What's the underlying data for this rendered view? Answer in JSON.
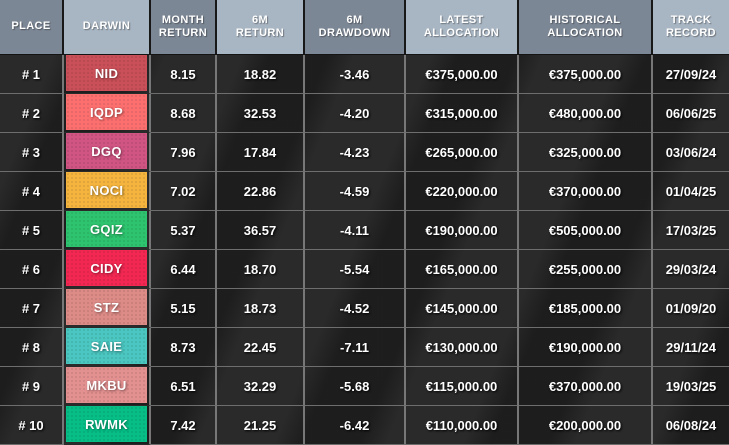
{
  "chart_data": {
    "type": "table",
    "title": "DARWIN leaderboard ranking table",
    "columns": [
      "PLACE",
      "DARWIN",
      "MONTH\nRETURN",
      "6M\nRETURN",
      "6M\nDRAWDOWN",
      "LATEST\nALLOCATION",
      "HISTORICAL\nALLOCATION",
      "TRACK\nRECORD"
    ],
    "rows": [
      {
        "place": "# 1",
        "darwin": "NID",
        "badge_color": "#c94f58",
        "month_return": "8.15",
        "six_m_return": "18.82",
        "six_m_drawdown": "-3.46",
        "latest_allocation": "€375,000.00",
        "historical_allocation": "€375,000.00",
        "track_record": "27/09/24"
      },
      {
        "place": "# 2",
        "darwin": "IQDP",
        "badge_color": "#fc6f6f",
        "month_return": "8.68",
        "six_m_return": "32.53",
        "six_m_drawdown": "-4.20",
        "latest_allocation": "€315,000.00",
        "historical_allocation": "€480,000.00",
        "track_record": "06/06/25"
      },
      {
        "place": "# 3",
        "darwin": "DGQ",
        "badge_color": "#d05583",
        "month_return": "7.96",
        "six_m_return": "17.84",
        "six_m_drawdown": "-4.23",
        "latest_allocation": "€265,000.00",
        "historical_allocation": "€325,000.00",
        "track_record": "03/06/24"
      },
      {
        "place": "# 4",
        "darwin": "NOCI",
        "badge_color": "#f4b43e",
        "month_return": "7.02",
        "six_m_return": "22.86",
        "six_m_drawdown": "-4.59",
        "latest_allocation": "€220,000.00",
        "historical_allocation": "€370,000.00",
        "track_record": "01/04/25"
      },
      {
        "place": "# 5",
        "darwin": "GQIZ",
        "badge_color": "#2ec46f",
        "month_return": "5.37",
        "six_m_return": "36.57",
        "six_m_drawdown": "-4.11",
        "latest_allocation": "€190,000.00",
        "historical_allocation": "€505,000.00",
        "track_record": "17/03/25"
      },
      {
        "place": "# 6",
        "darwin": "CIDY",
        "badge_color": "#f22852",
        "month_return": "6.44",
        "six_m_return": "18.70",
        "six_m_drawdown": "-5.54",
        "latest_allocation": "€165,000.00",
        "historical_allocation": "€255,000.00",
        "track_record": "29/03/24"
      },
      {
        "place": "# 7",
        "darwin": "STZ",
        "badge_color": "#dd8b87",
        "month_return": "5.15",
        "six_m_return": "18.73",
        "six_m_drawdown": "-4.52",
        "latest_allocation": "€145,000.00",
        "historical_allocation": "€185,000.00",
        "track_record": "01/09/20"
      },
      {
        "place": "# 8",
        "darwin": "SAIE",
        "badge_color": "#4bc6c0",
        "month_return": "8.73",
        "six_m_return": "22.45",
        "six_m_drawdown": "-7.11",
        "latest_allocation": "€130,000.00",
        "historical_allocation": "€190,000.00",
        "track_record": "29/11/24"
      },
      {
        "place": "# 9",
        "darwin": "MKBU",
        "badge_color": "#e39090",
        "month_return": "6.51",
        "six_m_return": "32.29",
        "six_m_drawdown": "-5.68",
        "latest_allocation": "€115,000.00",
        "historical_allocation": "€370,000.00",
        "track_record": "19/03/25"
      },
      {
        "place": "# 10",
        "darwin": "RWMK",
        "badge_color": "#06be86",
        "month_return": "7.42",
        "six_m_return": "21.25",
        "six_m_drawdown": "-6.42",
        "latest_allocation": "€110,000.00",
        "historical_allocation": "€200,000.00",
        "track_record": "06/08/24"
      }
    ]
  },
  "colors": {
    "header_dark": "#7c8795",
    "header_light": "#a8b5c2",
    "row_background": "#2a2a2a",
    "grid_line": "#777777",
    "text": "#ffffff"
  }
}
